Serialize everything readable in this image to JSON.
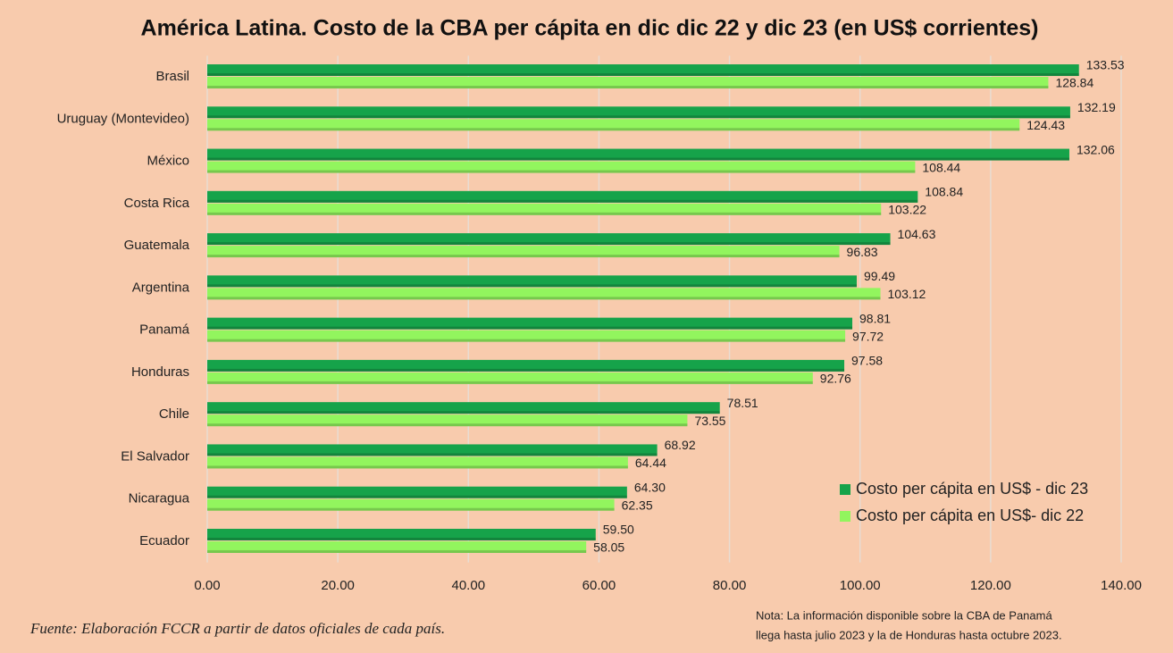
{
  "chart_data": {
    "type": "hbar",
    "title": "América Latina. Costo de la CBA per cápita en dic dic 22 y dic 23 (en US$ corrientes)",
    "categories": [
      "Brasil",
      "Uruguay (Montevideo)",
      "México",
      "Costa Rica",
      "Guatemala",
      "Argentina",
      "Panamá",
      "Honduras",
      "Chile",
      "El Salvador",
      "Nicaragua",
      "Ecuador"
    ],
    "series": [
      {
        "name": "Costo per cápita en US$ - dic 23",
        "color": "#16a34a",
        "values": [
          133.53,
          132.19,
          132.06,
          108.84,
          104.63,
          99.49,
          98.81,
          97.58,
          78.51,
          68.92,
          64.3,
          59.5
        ],
        "value_labels": [
          "133.53",
          "132.19",
          "132.06",
          "108.84",
          "104.63",
          "99.49",
          "98.81",
          "97.58",
          "78.51",
          "68.92",
          "64.30",
          "59.50"
        ]
      },
      {
        "name": "Costo per cápita en US$- dic 22",
        "color": "#92f55e",
        "values": [
          128.84,
          124.43,
          108.44,
          103.22,
          96.83,
          103.12,
          97.72,
          92.76,
          73.55,
          64.44,
          62.35,
          58.05
        ],
        "value_labels": [
          "128.84",
          "124.43",
          "108.44",
          "103.22",
          "96.83",
          "103.12",
          "97.72",
          "92.76",
          "73.55",
          "64.44",
          "62.35",
          "58.05"
        ]
      }
    ],
    "xlim": [
      0,
      140
    ],
    "xticks": [
      {
        "value": 0,
        "label": "0.00"
      },
      {
        "value": 20,
        "label": "20.00"
      },
      {
        "value": 40,
        "label": "40.00"
      },
      {
        "value": 60,
        "label": "60.00"
      },
      {
        "value": 80,
        "label": "80.00"
      },
      {
        "value": 100,
        "label": "100.00"
      },
      {
        "value": 120,
        "label": "120.00"
      },
      {
        "value": 140,
        "label": "140.00"
      }
    ],
    "grid": true,
    "legend": "lower right",
    "source": "Fuente: Elaboración FCCR a partir de datos oficiales de cada país.",
    "note": [
      "Nota: La información disponible sobre la CBA de Panamá",
      "llega hasta julio 2023 y la de Honduras hasta octubre 2023."
    ]
  }
}
